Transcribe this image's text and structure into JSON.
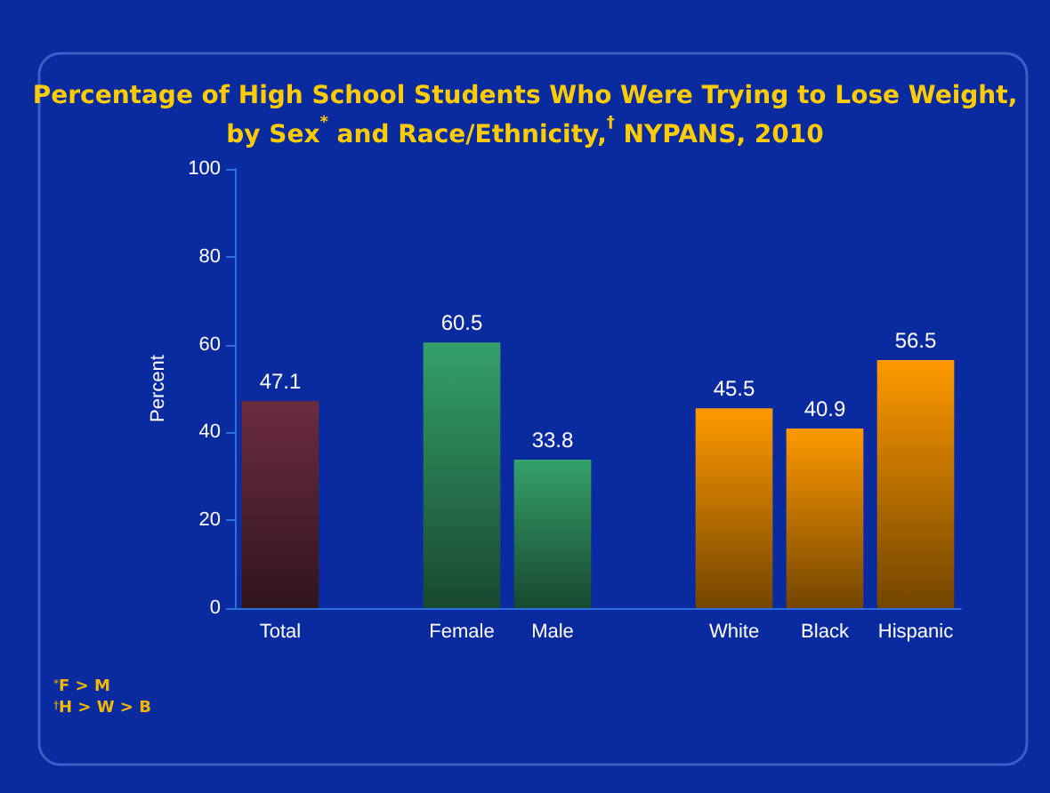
{
  "chart_data": {
    "type": "bar",
    "title": "Percentage of High School Students Who Were Trying to Lose Weight,\nby Sex$^{*}$ and Race/Ethnicity,$^{†}$ NYPANS, 2010",
    "ylabel": "Percent",
    "categories": [
      "Total",
      null,
      "Female",
      "Male",
      null,
      "White",
      "Black",
      "Hispanic"
    ],
    "values": [
      47.1,
      null,
      60.5,
      33.8,
      null,
      45.5,
      40.9,
      56.5
    ],
    "colors": [
      "#6b2c3e",
      null,
      "#35a06a",
      "#35a06a",
      null,
      "#ff9900",
      "#ff9900",
      "#ff9900"
    ],
    "ylim": [
      0,
      100
    ],
    "yticks": [
      0,
      20,
      40,
      60,
      80,
      100
    ],
    "grid": false,
    "data_labels": true,
    "annotations": [
      "$^{*}$F > M",
      "$^{†}$H > W > B"
    ]
  }
}
